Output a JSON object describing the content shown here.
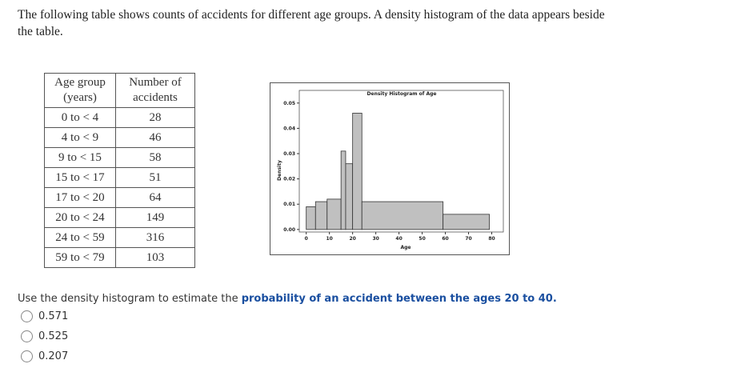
{
  "intro": "The following table shows counts of accidents for different age groups. A density histogram of the data appears beside the table.",
  "table": {
    "header": [
      "Age group (years)",
      "Number of accidents"
    ],
    "rows": [
      [
        "0 to < 4",
        28
      ],
      [
        "4 to < 9",
        46
      ],
      [
        "9 to < 15",
        58
      ],
      [
        "15 to < 17",
        51
      ],
      [
        "17 to < 20",
        64
      ],
      [
        "20 to < 24",
        149
      ],
      [
        "24 to < 59",
        316
      ],
      [
        "59 to < 79",
        103
      ]
    ]
  },
  "chart_data": {
    "type": "histogram",
    "title": "Density Histogram of Age",
    "x_label": "Age",
    "y_label": "Density",
    "bins": [
      0,
      4,
      9,
      15,
      17,
      20,
      24,
      59,
      79
    ],
    "values": [
      0.009,
      0.011,
      0.012,
      0.031,
      0.026,
      0.046,
      0.011,
      0.006
    ],
    "color": "#c0c0c0",
    "xlim": [
      -3,
      85
    ],
    "xticks": [
      0,
      10,
      20,
      30,
      40,
      50,
      60,
      70,
      80
    ],
    "ylim": [
      -0.001,
      0.055
    ],
    "yticks": [
      {
        "value": 0,
        "label": "0.00"
      },
      0.01,
      0.02,
      0.03,
      0.04,
      0.05
    ]
  },
  "question": {
    "text": "Use the density histogram to estimate the ",
    "emphasis": "probability of an accident between the ages 20 to 40."
  },
  "options": [
    "0.571",
    "0.525",
    "0.207"
  ]
}
